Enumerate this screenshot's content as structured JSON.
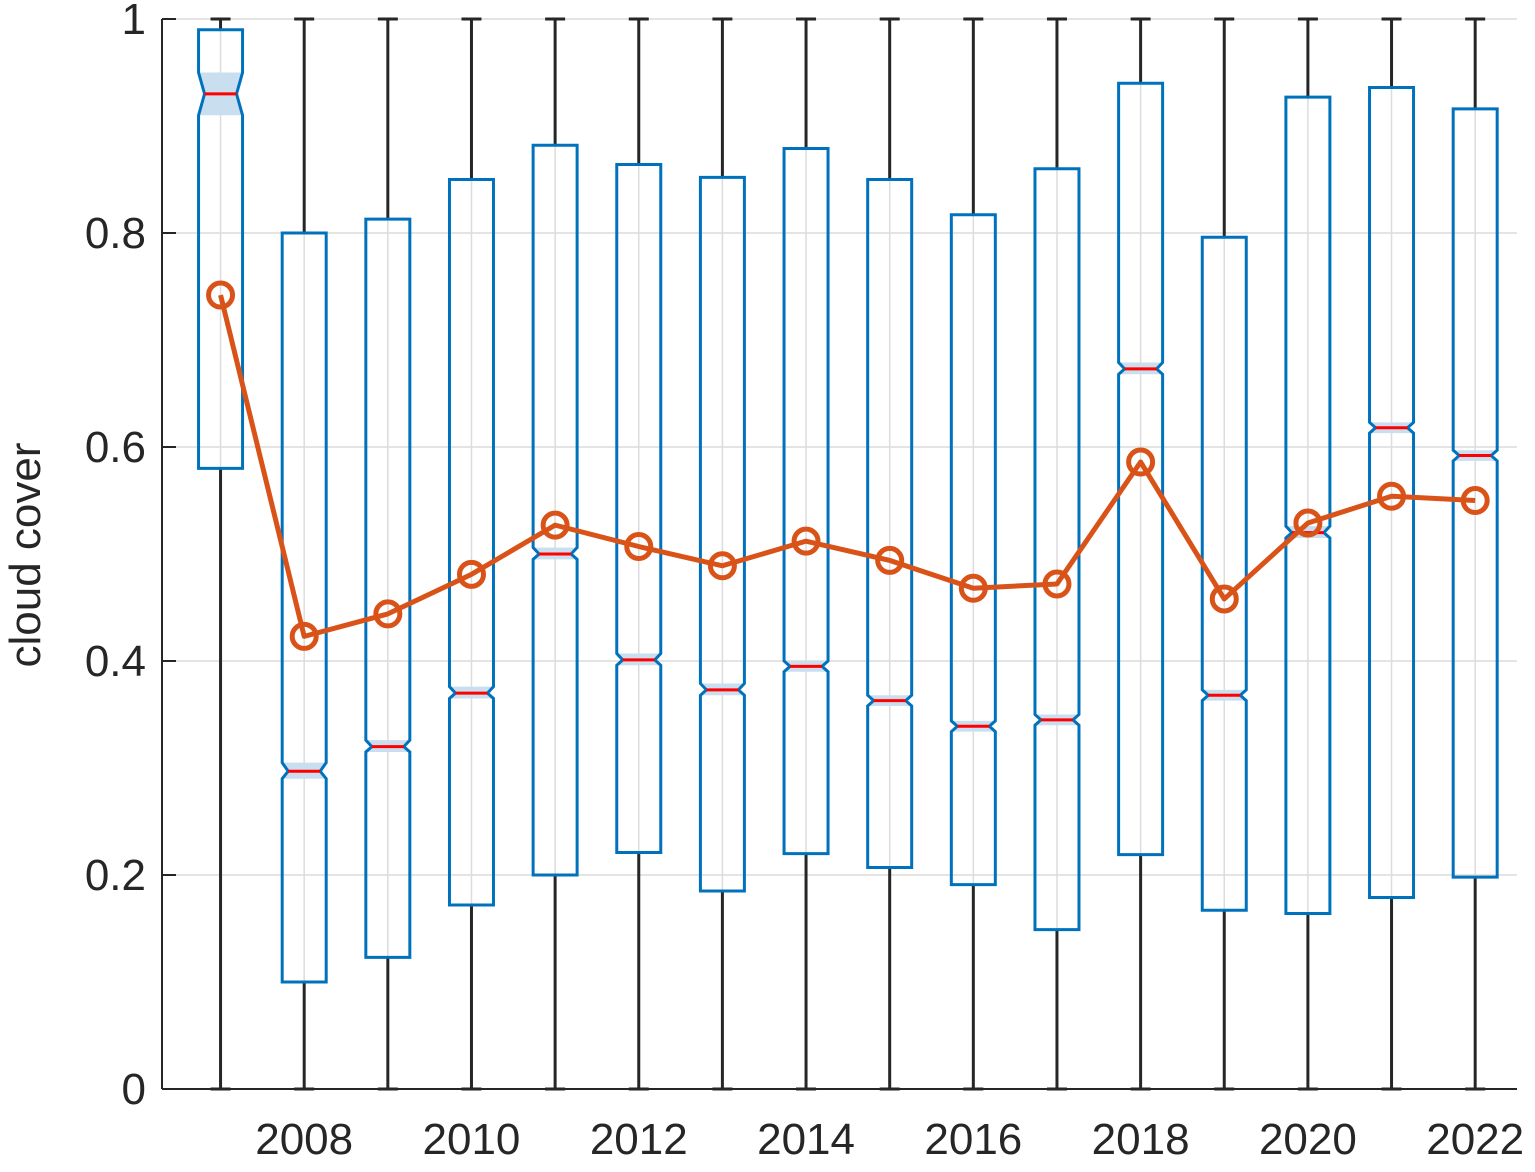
{
  "chart_data": {
    "type": "box",
    "ylabel": "cloud cover",
    "ylim": [
      0,
      1
    ],
    "xlim": [
      2006.3,
      2022.5
    ],
    "y_ticks": [
      0,
      0.2,
      0.4,
      0.6,
      0.8,
      1
    ],
    "y_tick_labels": [
      "0",
      "0.2",
      "0.4",
      "0.6",
      "0.8",
      "1"
    ],
    "x_ticks": [
      2008,
      2010,
      2012,
      2014,
      2016,
      2018,
      2020,
      2022
    ],
    "x_tick_labels": [
      "2008",
      "2010",
      "2012",
      "2014",
      "2016",
      "2018",
      "2020",
      "2022"
    ],
    "grid": true,
    "notched": true,
    "colors": {
      "box": "#0072BD",
      "notch_fill": "#C9DEEF",
      "median": "#FF0000",
      "whisker": "#262626",
      "mean_line": "#D95319",
      "grid": "#DCDCDC",
      "axis": "#262626"
    },
    "years": [
      2007,
      2008,
      2009,
      2010,
      2011,
      2012,
      2013,
      2014,
      2015,
      2016,
      2017,
      2018,
      2019,
      2020,
      2021,
      2022
    ],
    "boxes": [
      {
        "year": 2007,
        "min": 0,
        "q1": 0.58,
        "median": 0.93,
        "q3": 0.99,
        "max": 1,
        "notch_lo": 0.91,
        "notch_hi": 0.95
      },
      {
        "year": 2008,
        "min": 0,
        "q1": 0.1,
        "median": 0.297,
        "q3": 0.8,
        "max": 1,
        "notch_lo": 0.29,
        "notch_hi": 0.305
      },
      {
        "year": 2009,
        "min": 0,
        "q1": 0.123,
        "median": 0.32,
        "q3": 0.813,
        "max": 1,
        "notch_lo": 0.315,
        "notch_hi": 0.326
      },
      {
        "year": 2010,
        "min": 0,
        "q1": 0.172,
        "median": 0.37,
        "q3": 0.85,
        "max": 1,
        "notch_lo": 0.365,
        "notch_hi": 0.376
      },
      {
        "year": 2011,
        "min": 0,
        "q1": 0.2,
        "median": 0.5,
        "q3": 0.882,
        "max": 1,
        "notch_lo": 0.495,
        "notch_hi": 0.506
      },
      {
        "year": 2012,
        "min": 0,
        "q1": 0.221,
        "median": 0.401,
        "q3": 0.864,
        "max": 1,
        "notch_lo": 0.396,
        "notch_hi": 0.407
      },
      {
        "year": 2013,
        "min": 0,
        "q1": 0.185,
        "median": 0.373,
        "q3": 0.852,
        "max": 1,
        "notch_lo": 0.368,
        "notch_hi": 0.379
      },
      {
        "year": 2014,
        "min": 0,
        "q1": 0.22,
        "median": 0.395,
        "q3": 0.879,
        "max": 1,
        "notch_lo": 0.39,
        "notch_hi": 0.4
      },
      {
        "year": 2015,
        "min": 0,
        "q1": 0.207,
        "median": 0.363,
        "q3": 0.85,
        "max": 1,
        "notch_lo": 0.358,
        "notch_hi": 0.368
      },
      {
        "year": 2016,
        "min": 0,
        "q1": 0.191,
        "median": 0.339,
        "q3": 0.817,
        "max": 1,
        "notch_lo": 0.334,
        "notch_hi": 0.344
      },
      {
        "year": 2017,
        "min": 0,
        "q1": 0.149,
        "median": 0.345,
        "q3": 0.86,
        "max": 1,
        "notch_lo": 0.34,
        "notch_hi": 0.35
      },
      {
        "year": 2018,
        "min": 0,
        "q1": 0.219,
        "median": 0.673,
        "q3": 0.94,
        "max": 1,
        "notch_lo": 0.668,
        "notch_hi": 0.679
      },
      {
        "year": 2019,
        "min": 0,
        "q1": 0.167,
        "median": 0.368,
        "q3": 0.796,
        "max": 1,
        "notch_lo": 0.363,
        "notch_hi": 0.373
      },
      {
        "year": 2020,
        "min": 0,
        "q1": 0.164,
        "median": 0.52,
        "q3": 0.927,
        "max": 1,
        "notch_lo": 0.515,
        "notch_hi": 0.526
      },
      {
        "year": 2021,
        "min": 0,
        "q1": 0.179,
        "median": 0.618,
        "q3": 0.936,
        "max": 1,
        "notch_lo": 0.613,
        "notch_hi": 0.623
      },
      {
        "year": 2022,
        "min": 0,
        "q1": 0.198,
        "median": 0.592,
        "q3": 0.916,
        "max": 1,
        "notch_lo": 0.587,
        "notch_hi": 0.597
      }
    ],
    "series": [
      {
        "type": "line",
        "marker": "circle",
        "x": [
          2007,
          2008,
          2009,
          2010,
          2011,
          2012,
          2013,
          2014,
          2015,
          2016,
          2017,
          2018,
          2019,
          2020,
          2021,
          2022
        ],
        "values": [
          0.742,
          0.423,
          0.444,
          0.481,
          0.527,
          0.507,
          0.489,
          0.512,
          0.494,
          0.468,
          0.472,
          0.586,
          0.458,
          0.529,
          0.554,
          0.55
        ]
      }
    ]
  }
}
